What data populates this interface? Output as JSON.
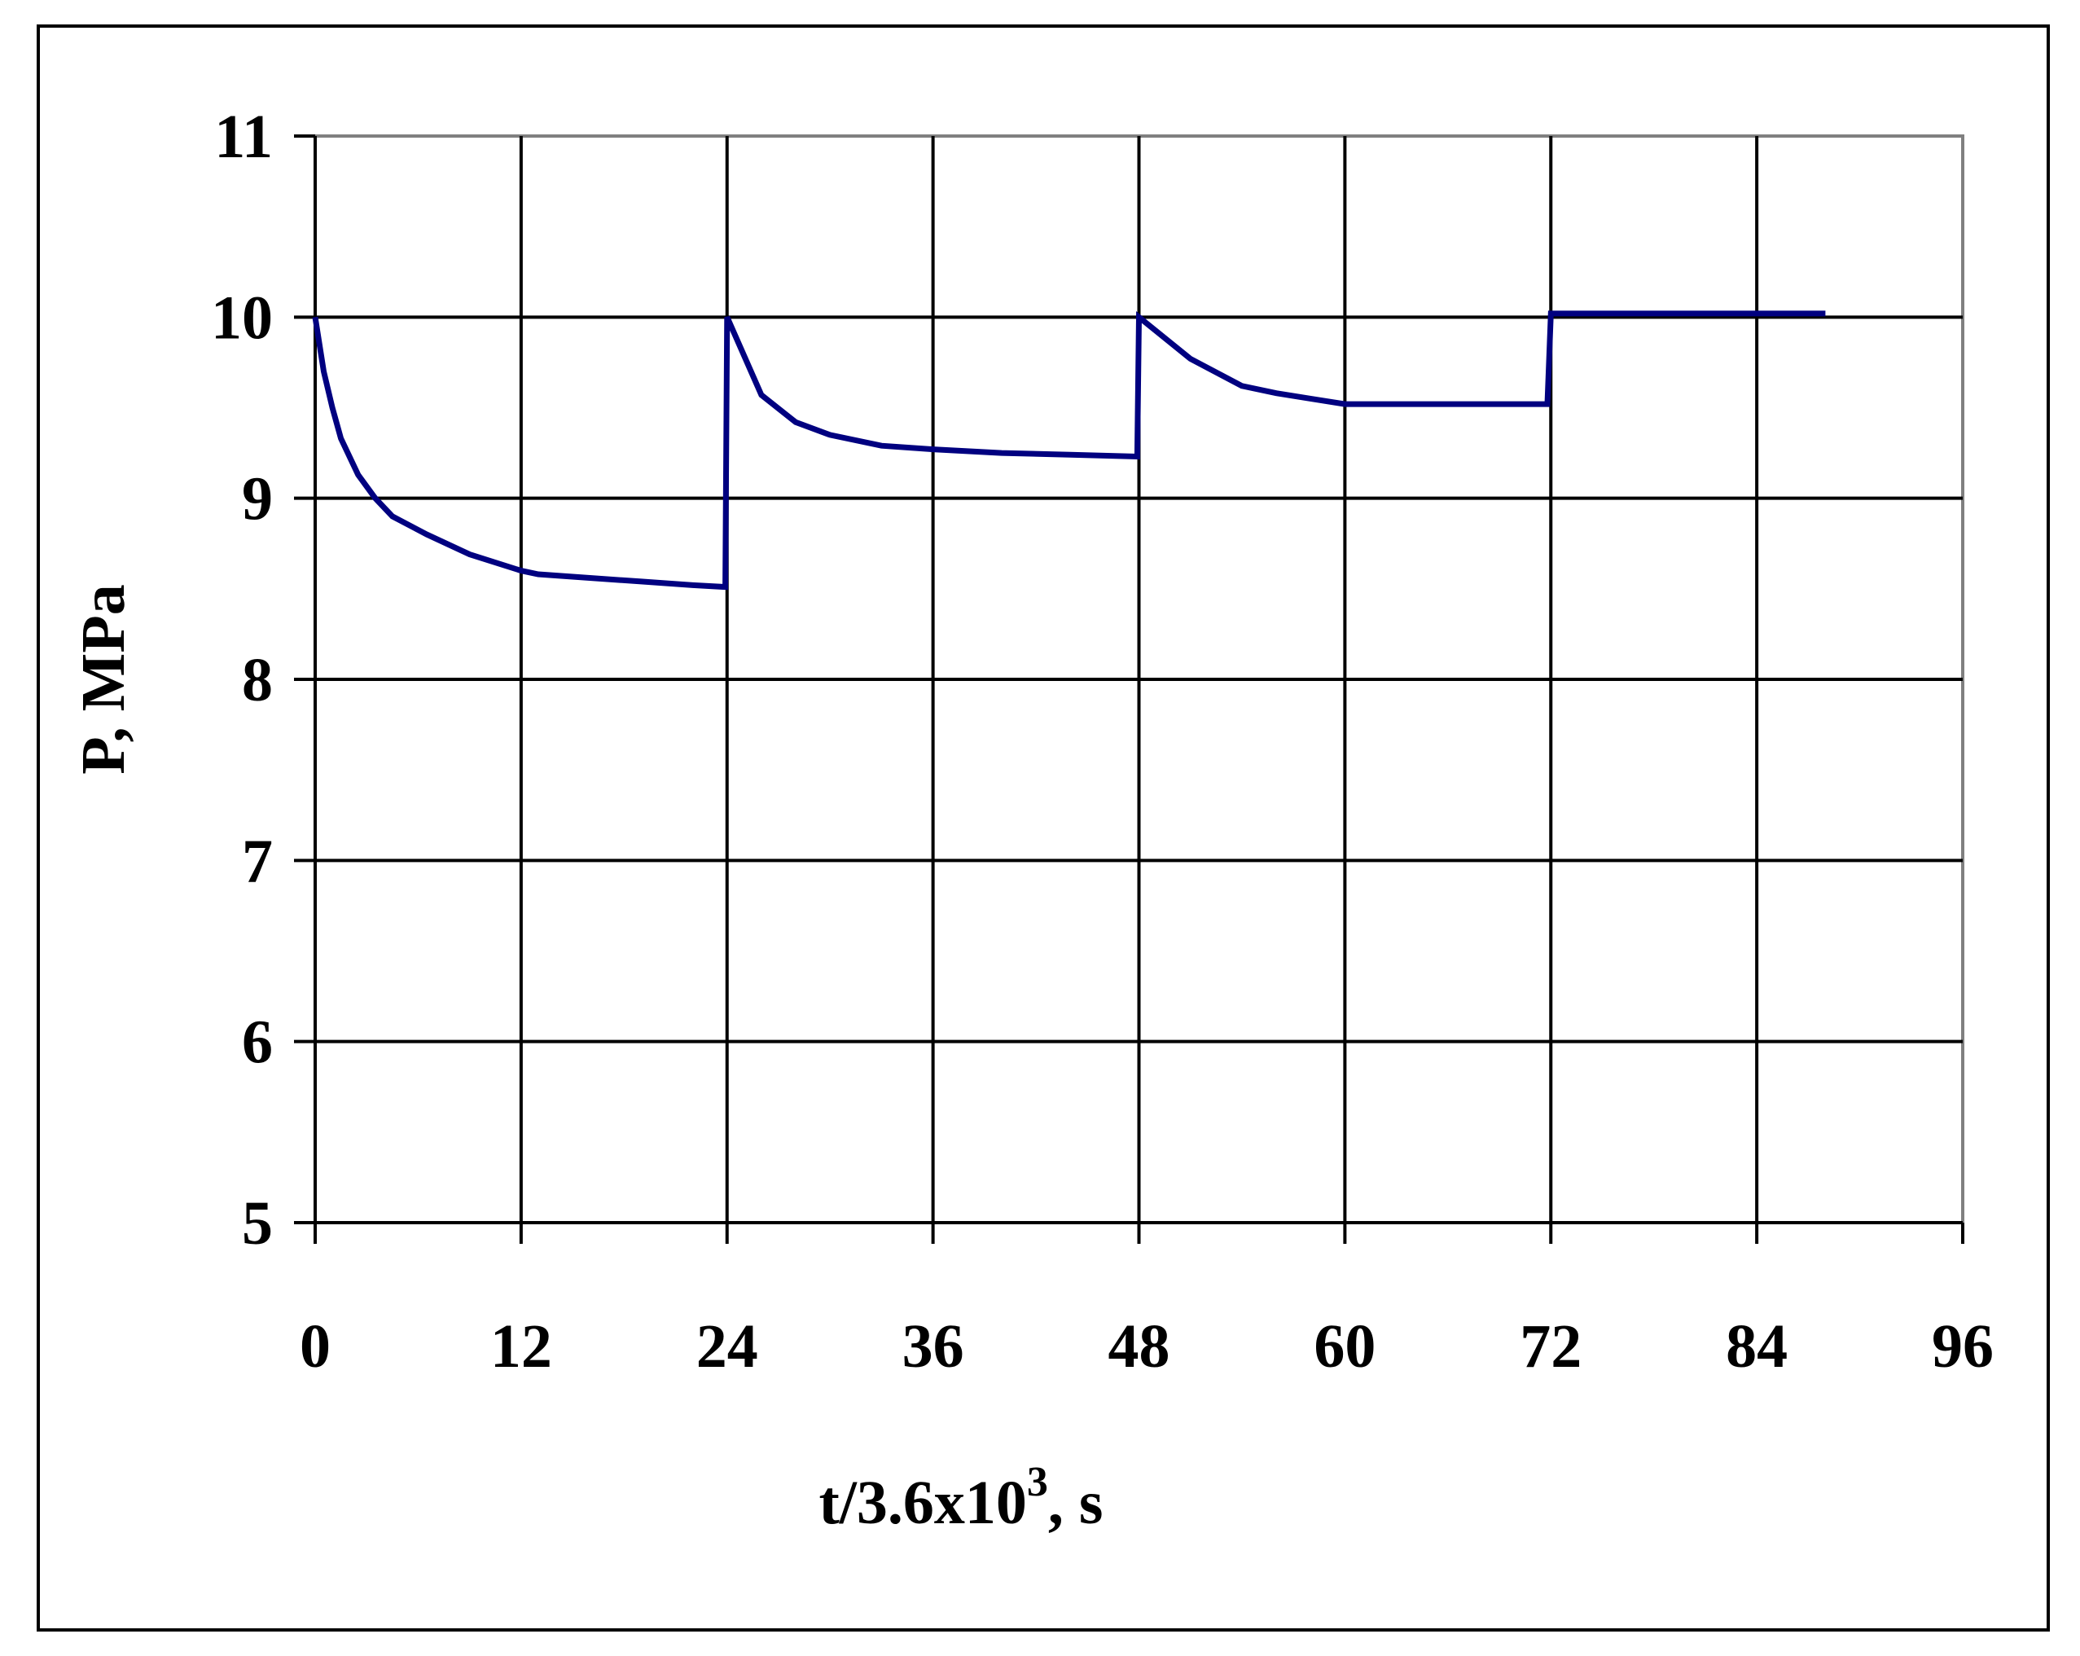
{
  "chart_data": {
    "type": "line",
    "xlabel": "t/3.6x10",
    "xlabel_sup": "3",
    "xlabel_unit": ", s",
    "ylabel": "P, MPa",
    "xlim": [
      0,
      96
    ],
    "ylim": [
      5,
      11
    ],
    "xticks": [
      "0",
      "12",
      "24",
      "36",
      "48",
      "60",
      "72",
      "84",
      "96"
    ],
    "yticks": [
      "5",
      "6",
      "7",
      "8",
      "9",
      "10",
      "11"
    ],
    "grid": true,
    "legend": "none",
    "colors": {
      "line": "#000080",
      "grid": "#000000",
      "frame": "#808080"
    },
    "series": [
      {
        "x": [
          0,
          0.5,
          1,
          1.5,
          2.5,
          3.5,
          4.5,
          6.5,
          9,
          12,
          13,
          16,
          19,
          22,
          23.9,
          23.9,
          24,
          26,
          28,
          30,
          33,
          36,
          40,
          44,
          47.9,
          47.9,
          48,
          51,
          54,
          56,
          58,
          60,
          62,
          65,
          68,
          71.8,
          71.8,
          72,
          76,
          80,
          84,
          88
        ],
        "y": [
          10.0,
          9.7,
          9.5,
          9.33,
          9.13,
          9.0,
          8.9,
          8.8,
          8.69,
          8.6,
          8.58,
          8.56,
          8.54,
          8.52,
          8.51,
          8.51,
          10.0,
          9.57,
          9.42,
          9.35,
          9.29,
          9.27,
          9.25,
          9.24,
          9.23,
          9.23,
          10.0,
          9.77,
          9.62,
          9.58,
          9.55,
          9.52,
          9.52,
          9.52,
          9.52,
          9.52,
          9.52,
          10.02,
          10.02,
          10.02,
          10.02,
          10.02
        ]
      }
    ]
  }
}
